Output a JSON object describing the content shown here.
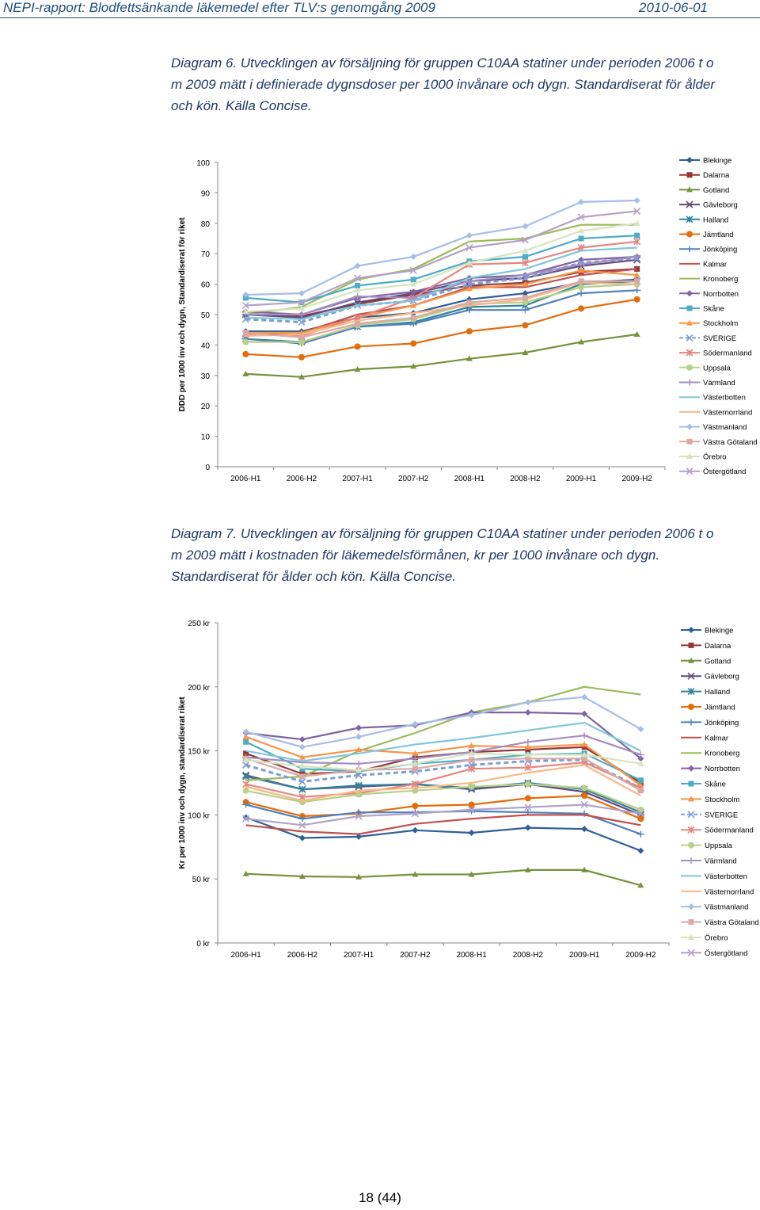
{
  "header": {
    "left": "NEPI-rapport: Blodfettsänkande läkemedel efter TLV:s genomgång 2009",
    "right": "2010-06-01"
  },
  "captions": {
    "diagram6": "Diagram 6. Utvecklingen av försäljning för gruppen C10AA statiner under perioden 2006 t o m 2009 mätt i definierade dygnsdoser per 1000 invånare och dygn. Standardiserat för ålder och kön. Källa Concise.",
    "diagram7": "Diagram 7. Utvecklingen av försäljning för gruppen C10AA statiner under perioden 2006 t o m 2009 mätt i kostnaden för läkemedelsförmånen, kr per 1000 invånare och dygn. Standardiserat för ålder och kön. Källa Concise."
  },
  "page_number": "18 (44)",
  "chart_data": [
    {
      "type": "line",
      "title": "",
      "ylabel": "DDD per 1000 inv och dygn, Standardiserat för riket",
      "xlabel": "",
      "categories": [
        "2006-H1",
        "2006-H2",
        "2007-H1",
        "2007-H2",
        "2008-H1",
        "2008-H2",
        "2009-H1",
        "2009-H2"
      ],
      "ylim": [
        0,
        100
      ],
      "yticks": [
        0,
        10,
        20,
        30,
        40,
        50,
        60,
        70,
        80,
        90,
        100
      ],
      "ytick_labels": [
        "0",
        "10",
        "20",
        "30",
        "40",
        "50",
        "60",
        "70",
        "80",
        "90",
        "100"
      ],
      "legend": "right",
      "series": [
        {
          "name": "Blekinge",
          "color": "#2e5f96",
          "marker": "diamond",
          "values": [
            44.5,
            44.5,
            49,
            50.5,
            55,
            57,
            60.5,
            61.5
          ]
        },
        {
          "name": "Dalarna",
          "color": "#953735",
          "marker": "square",
          "values": [
            50,
            49.5,
            53.5,
            56.5,
            59.5,
            60.5,
            64,
            65
          ]
        },
        {
          "name": "Gotland",
          "color": "#76923c",
          "marker": "triangle",
          "values": [
            30.5,
            29.5,
            32,
            33,
            35.5,
            37.5,
            41,
            43.5
          ]
        },
        {
          "name": "Gävleborg",
          "color": "#604a7b",
          "marker": "x",
          "values": [
            50,
            49,
            54,
            57,
            61,
            62,
            66,
            68
          ]
        },
        {
          "name": "Halland",
          "color": "#31849b",
          "marker": "star",
          "values": [
            42,
            41,
            46,
            47.5,
            52.5,
            53,
            60,
            61
          ]
        },
        {
          "name": "Jämtland",
          "color": "#e46c0a",
          "marker": "circle",
          "values": [
            37,
            36,
            39.5,
            40.5,
            44.5,
            46.5,
            52,
            55
          ]
        },
        {
          "name": "Jönköping",
          "color": "#4f81bd",
          "marker": "plus",
          "values": [
            42,
            40.5,
            46,
            47,
            51.5,
            51.5,
            57,
            58
          ]
        },
        {
          "name": "Kalmar",
          "color": "#c0504d",
          "marker": "none",
          "values": [
            43,
            44,
            50,
            53,
            59,
            59,
            63,
            65
          ]
        },
        {
          "name": "Kronoberg",
          "color": "#9bbb59",
          "marker": "none",
          "values": [
            50,
            52.5,
            61.5,
            65,
            74,
            75,
            79.5,
            79.5
          ]
        },
        {
          "name": "Norrbotten",
          "color": "#8064a2",
          "marker": "diamond",
          "values": [
            51,
            50,
            55.5,
            57.5,
            62,
            63,
            68,
            69
          ]
        },
        {
          "name": "Skåne",
          "color": "#4bacc6",
          "marker": "square",
          "values": [
            55.5,
            54,
            59.5,
            61.5,
            67.5,
            69,
            75,
            76
          ]
        },
        {
          "name": "Stockholm",
          "color": "#f79646",
          "marker": "triangle",
          "values": [
            44,
            44,
            49,
            53,
            58.5,
            60,
            64.5,
            63
          ]
        },
        {
          "name": "SVERIGE",
          "color": "#7a9dd4",
          "marker": "x",
          "dashed": true,
          "values": [
            48.5,
            47.5,
            53,
            54.5,
            60,
            62,
            67,
            68.5
          ]
        },
        {
          "name": "Södermanland",
          "color": "#e6867f",
          "marker": "star",
          "values": [
            43.5,
            43,
            49,
            55.5,
            66.5,
            67,
            72,
            74
          ]
        },
        {
          "name": "Uppsala",
          "color": "#b8d087",
          "marker": "circle",
          "values": [
            41,
            41,
            46.5,
            48.5,
            53.5,
            54,
            59,
            60
          ]
        },
        {
          "name": "Värmland",
          "color": "#a28fc1",
          "marker": "plus",
          "values": [
            50,
            50,
            56,
            55.5,
            61,
            63,
            66.5,
            69
          ]
        },
        {
          "name": "Västerbotten",
          "color": "#7fc7dc",
          "marker": "none",
          "values": [
            49,
            48.5,
            53,
            54.5,
            62,
            65,
            71,
            72
          ]
        },
        {
          "name": "Västernorrland",
          "color": "#f9b887",
          "marker": "none",
          "values": [
            43,
            43.5,
            48,
            50.5,
            53,
            55,
            60.5,
            60
          ]
        },
        {
          "name": "Västmanland",
          "color": "#a6bde6",
          "marker": "diamond",
          "values": [
            56.5,
            57,
            66,
            69,
            76,
            79,
            87,
            87.5
          ]
        },
        {
          "name": "Västra Götaland",
          "color": "#d9a9a8",
          "marker": "square",
          "values": [
            44,
            42.5,
            47,
            49,
            54,
            55.5,
            61,
            61
          ]
        },
        {
          "name": "Örebro",
          "color": "#d7e4bd",
          "marker": "triangle",
          "values": [
            51,
            52,
            58,
            60,
            67,
            71,
            77.5,
            80
          ]
        },
        {
          "name": "Östergötland",
          "color": "#b3a2c7",
          "marker": "x",
          "values": [
            53,
            54,
            62,
            64.5,
            72,
            74.5,
            82,
            84
          ]
        }
      ]
    },
    {
      "type": "line",
      "title": "",
      "ylabel": "Kr per 1000 inv och dygn, standardiserat  riket",
      "xlabel": "",
      "categories": [
        "2006-H1",
        "2006-H2",
        "2007-H1",
        "2007-H2",
        "2008-H1",
        "2008-H2",
        "2009-H1",
        "2009-H2"
      ],
      "ylim": [
        0,
        250
      ],
      "yticks": [
        0,
        50,
        100,
        150,
        200,
        250
      ],
      "ytick_labels": [
        "0 kr",
        "50 kr",
        "100 kr",
        "150 kr",
        "200 kr",
        "250 kr"
      ],
      "legend": "right",
      "series": [
        {
          "name": "Blekinge",
          "color": "#2e5f96",
          "marker": "diamond",
          "values": [
            98,
            82,
            83,
            88,
            86,
            90,
            89,
            72
          ]
        },
        {
          "name": "Dalarna",
          "color": "#953735",
          "marker": "square",
          "values": [
            148,
            132,
            134,
            145,
            149,
            151,
            153,
            125
          ]
        },
        {
          "name": "Gotland",
          "color": "#76923c",
          "marker": "triangle",
          "values": [
            54,
            52,
            51.5,
            53.5,
            53.5,
            57,
            57,
            45
          ]
        },
        {
          "name": "Gävleborg",
          "color": "#604a7b",
          "marker": "x",
          "values": [
            131,
            120,
            122,
            124,
            120,
            124,
            118,
            100
          ]
        },
        {
          "name": "Halland",
          "color": "#31849b",
          "marker": "star",
          "values": [
            130,
            120,
            123,
            124,
            121,
            125,
            120,
            102
          ]
        },
        {
          "name": "Jämtland",
          "color": "#e46c0a",
          "marker": "circle",
          "values": [
            110,
            99,
            101,
            107,
            108,
            113,
            115,
            97
          ]
        },
        {
          "name": "Jönköping",
          "color": "#4f81bd",
          "marker": "plus",
          "values": [
            108,
            97,
            102,
            102,
            103,
            102,
            101,
            85
          ]
        },
        {
          "name": "Kalmar",
          "color": "#c0504d",
          "marker": "none",
          "values": [
            92,
            87,
            85,
            93,
            97,
            100,
            100,
            92
          ]
        },
        {
          "name": "Kronoberg",
          "color": "#9bbb59",
          "marker": "none",
          "values": [
            127,
            130,
            150,
            164,
            180,
            188,
            200,
            194
          ]
        },
        {
          "name": "Norrbotten",
          "color": "#8064a2",
          "marker": "diamond",
          "values": [
            164,
            159,
            168,
            170,
            180,
            180,
            179,
            144
          ]
        },
        {
          "name": "Skåne",
          "color": "#4bacc6",
          "marker": "square",
          "values": [
            157,
            136,
            134,
            140,
            143,
            147,
            148,
            127
          ]
        },
        {
          "name": "Stockholm",
          "color": "#f79646",
          "marker": "triangle",
          "values": [
            161,
            145,
            151,
            148,
            154,
            153,
            155,
            123
          ]
        },
        {
          "name": "SVERIGE",
          "color": "#7a9dd4",
          "marker": "x",
          "dashed": true,
          "values": [
            139,
            126,
            131,
            134,
            139,
            142,
            143,
            121
          ]
        },
        {
          "name": "Södermanland",
          "color": "#e6867f",
          "marker": "star",
          "values": [
            124,
            114,
            117,
            124,
            136,
            137,
            141,
            121
          ]
        },
        {
          "name": "Uppsala",
          "color": "#b8d087",
          "marker": "circle",
          "values": [
            119,
            110,
            116,
            119,
            122,
            124,
            121,
            104
          ]
        },
        {
          "name": "Värmland",
          "color": "#a28fc1",
          "marker": "plus",
          "values": [
            145,
            141,
            140,
            144,
            149,
            157,
            162,
            147
          ]
        },
        {
          "name": "Västerbotten",
          "color": "#7fc7dc",
          "marker": "none",
          "values": [
            150,
            142,
            148,
            155,
            160,
            166,
            172,
            150
          ]
        },
        {
          "name": "Västernorrland",
          "color": "#f9b887",
          "marker": "none",
          "values": [
            122,
            111,
            119,
            121,
            125,
            133,
            139,
            115
          ]
        },
        {
          "name": "Västmanland",
          "color": "#a6bde6",
          "marker": "diamond",
          "values": [
            165,
            153,
            161,
            171,
            178,
            188,
            192,
            167
          ]
        },
        {
          "name": "Västra Götaland",
          "color": "#d9a9a8",
          "marker": "square",
          "values": [
            144,
            130,
            135,
            136,
            143,
            144,
            144,
            119
          ]
        },
        {
          "name": "Örebro",
          "color": "#d7e4bd",
          "marker": "triangle",
          "values": [
            143,
            138,
            135,
            140,
            148,
            147,
            147,
            140
          ]
        },
        {
          "name": "Östergötland",
          "color": "#b3a2c7",
          "marker": "x",
          "values": [
            97,
            92,
            99,
            101,
            104,
            106,
            108,
            101
          ]
        }
      ]
    }
  ]
}
